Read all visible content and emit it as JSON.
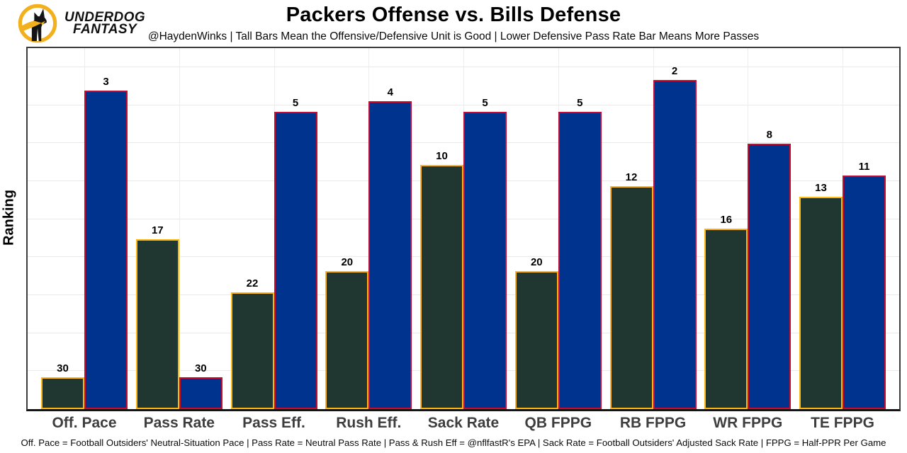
{
  "header": {
    "logo": {
      "line1": "UNDERDOG",
      "line2": "FANTASY"
    },
    "title": "Packers Offense vs. Bills Defense",
    "subtitle": "@HaydenWinks | Tall Bars Mean the Offensive/Defensive Unit is Good | Lower Defensive Pass Rate Bar Means More Passes"
  },
  "chart_data": {
    "type": "bar",
    "title": "Packers Offense vs. Bills Defense",
    "ylabel": "Ranking",
    "categories": [
      "Off. Pace",
      "Pass Rate",
      "Pass Eff.",
      "Rush Eff.",
      "Sack Rate",
      "QB FPPG",
      "RB FPPG",
      "WR FPPG",
      "TE FPPG"
    ],
    "series": [
      {
        "name": "Packers Offense",
        "fill_color": "#203731",
        "border_color": "#FFB612",
        "values": [
          30,
          17,
          22,
          20,
          10,
          20,
          12,
          16,
          13
        ]
      },
      {
        "name": "Bills Defense",
        "fill_color": "#00338D",
        "border_color": "#C60C30",
        "values": [
          3,
          30,
          5,
          4,
          5,
          5,
          2,
          8,
          11
        ]
      }
    ],
    "value_labels_shown": true,
    "bar_height_encoding": "33 - rank (lower rank = taller bar)",
    "ylim": [
      0,
      34
    ],
    "grid": true,
    "y_tick_labels": "none",
    "legend": "none"
  },
  "footer": {
    "note": "Off. Pace = Football Outsiders' Neutral-Situation Pace | Pass Rate = Neutral Pass Rate | Pass & Rush Eff = @nflfastR's EPA | Sack Rate = Football Outsiders' Adjusted Sack Rate | FPPG = Half-PPR Per Game"
  },
  "colors": {
    "packers_green": "#203731",
    "packers_gold": "#FFB612",
    "bills_blue": "#00338D",
    "bills_red": "#C60C30",
    "grid_line": "#e9e9e9",
    "frame": "#3c3c3c",
    "tick_label": "#3e3e3e",
    "logo_gold": "#F2B01C"
  }
}
